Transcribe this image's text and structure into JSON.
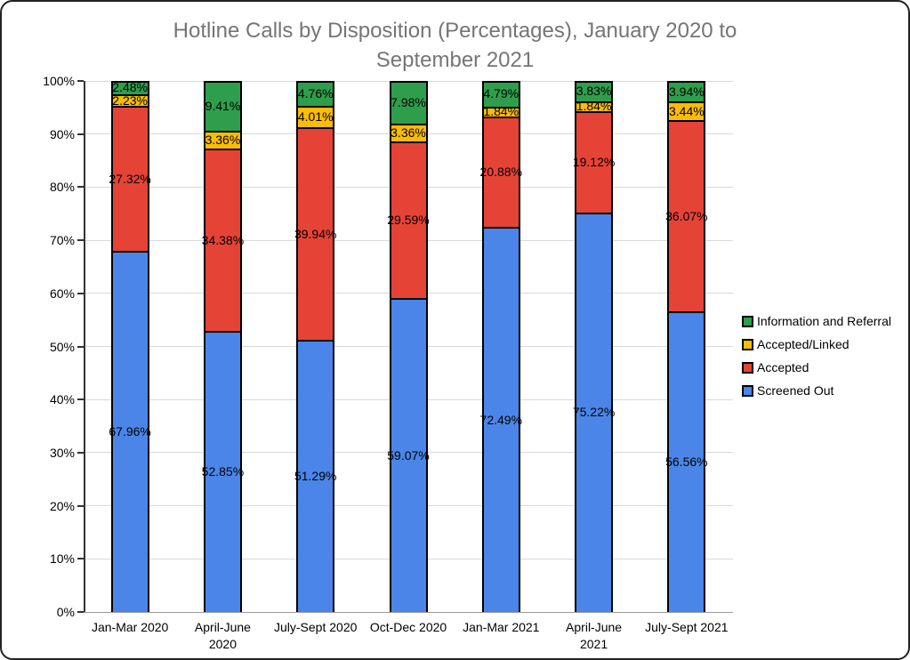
{
  "card": {
    "background": "#ffffff",
    "border_color": "#222222"
  },
  "chart_data": {
    "type": "bar",
    "stacked": true,
    "orientation": "vertical",
    "title": "Hotline Calls by Disposition (Percentages), January 2020 to\nSeptember 2021",
    "title_color": "#757575",
    "categories": [
      "Jan-Mar 2020",
      "April-June\n2020",
      "July-Sept 2020",
      "Oct-Dec 2020",
      "Jan-Mar 2021",
      "April-June\n2021",
      "July-Sept 2021"
    ],
    "series": [
      {
        "name": "Screened Out",
        "color": "#4b85e8",
        "values": [
          67.96,
          52.85,
          51.29,
          59.07,
          72.49,
          75.22,
          56.56
        ]
      },
      {
        "name": "Accepted",
        "color": "#e64337",
        "values": [
          27.32,
          34.38,
          39.94,
          29.59,
          20.88,
          19.12,
          36.07
        ]
      },
      {
        "name": "Accepted/Linked",
        "color": "#fbbc04",
        "values": [
          2.23,
          3.36,
          4.01,
          3.36,
          1.84,
          1.84,
          3.44
        ]
      },
      {
        "name": "Information and Referral",
        "color": "#2f9e4c",
        "values": [
          2.48,
          9.41,
          4.76,
          7.98,
          4.79,
          3.83,
          3.94
        ]
      }
    ],
    "data_label_suffix": "%",
    "data_label_decimals": 2,
    "y_axis": {
      "min": 0,
      "max": 100,
      "step": 10,
      "tick_labels": [
        "0%",
        "10%",
        "20%",
        "30%",
        "40%",
        "50%",
        "60%",
        "70%",
        "80%",
        "90%",
        "100%"
      ]
    },
    "grid": {
      "show": true,
      "line_color": "#d9d9d9",
      "baseline_color": "#9a9a9a"
    },
    "legend": {
      "position": "right",
      "items_top_to_bottom": [
        "Information and Referral",
        "Accepted/Linked",
        "Accepted",
        "Screened Out"
      ]
    },
    "segment_border_color": "#000000"
  }
}
